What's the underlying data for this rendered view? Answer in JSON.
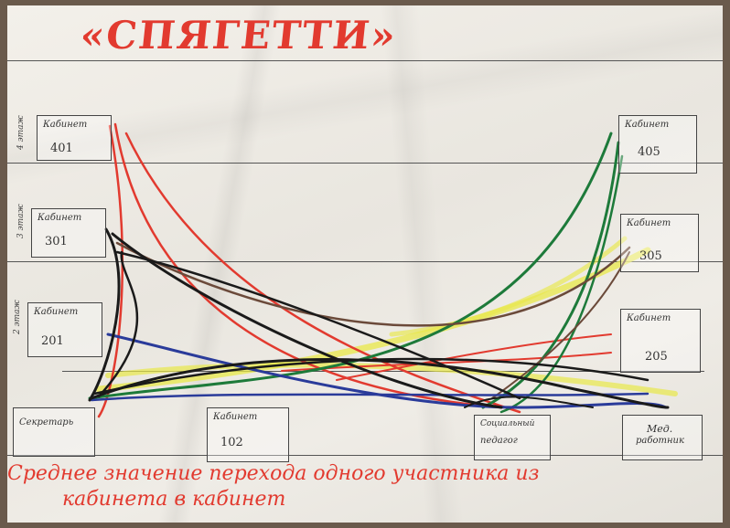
{
  "title": "«СПЯГЕТТИ»",
  "floors": {
    "f4": "4 этаж",
    "f3": "3 этаж",
    "f2": "2 этаж"
  },
  "rooms": {
    "r401": {
      "label": "Кабинет",
      "number": "401"
    },
    "r405": {
      "label": "Кабинет",
      "number": "405"
    },
    "r301": {
      "label": "Кабинет",
      "number": "301"
    },
    "r305": {
      "label": "Кабинет",
      "number": "305"
    },
    "r201": {
      "label": "Кабинет",
      "number": "201"
    },
    "r205": {
      "label": "Кабинет",
      "number": "205"
    },
    "secretary": {
      "label": "Секретарь",
      "number": ""
    },
    "r102": {
      "label": "Кабинет",
      "number": "102"
    },
    "social": {
      "label": "Социальный",
      "number": "педагог"
    },
    "medic": {
      "label": "Мед.",
      "number": "работник"
    }
  },
  "caption": {
    "line1": "Среднее значение перехода одного участника из",
    "line2": "кабинета в кабинет"
  },
  "colors": {
    "marker_red": "#e23a2f",
    "marker_green": "#1d7a3a",
    "marker_black": "#1a1a1a",
    "marker_blue": "#2a3b9a",
    "marker_yellow": "#e8e84a",
    "marker_brown": "#6b4a3a"
  }
}
